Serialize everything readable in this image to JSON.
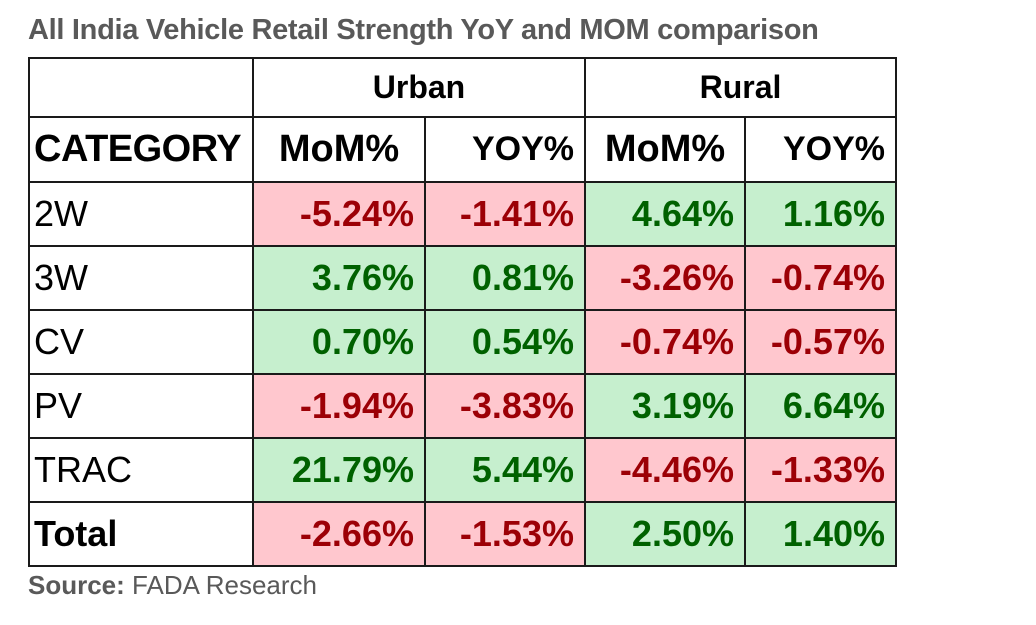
{
  "title": "All India Vehicle Retail Strength YoY and MOM comparison",
  "table": {
    "groups": [
      "Urban",
      "Rural"
    ],
    "header": {
      "category": "CATEGORY",
      "urban_mom": "MoM%",
      "urban_yoy": "YOY%",
      "rural_mom": "MoM%",
      "rural_yoy": "YOY%"
    },
    "rows": [
      {
        "category": "2W",
        "urban_mom": "-5.24%",
        "urban_yoy": "-1.41%",
        "rural_mom": "4.64%",
        "rural_yoy": "1.16%"
      },
      {
        "category": "3W",
        "urban_mom": "3.76%",
        "urban_yoy": "0.81%",
        "rural_mom": "-3.26%",
        "rural_yoy": "-0.74%"
      },
      {
        "category": "CV",
        "urban_mom": "0.70%",
        "urban_yoy": "0.54%",
        "rural_mom": "-0.74%",
        "rural_yoy": "-0.57%"
      },
      {
        "category": "PV",
        "urban_mom": "-1.94%",
        "urban_yoy": "-3.83%",
        "rural_mom": "3.19%",
        "rural_yoy": "6.64%"
      },
      {
        "category": "TRAC",
        "urban_mom": "21.79%",
        "urban_yoy": "5.44%",
        "rural_mom": "-4.46%",
        "rural_yoy": "-1.33%"
      },
      {
        "category": "Total",
        "urban_mom": "-2.66%",
        "urban_yoy": "-1.53%",
        "rural_mom": "2.50%",
        "rural_yoy": "1.40%"
      }
    ]
  },
  "source": {
    "label": "Source:",
    "text": " FADA Research"
  },
  "colors": {
    "negative_fill": "#ffc7ce",
    "negative_text": "#9c0006",
    "positive_fill": "#c6efce",
    "positive_text": "#006100",
    "title_text": "#595959"
  }
}
